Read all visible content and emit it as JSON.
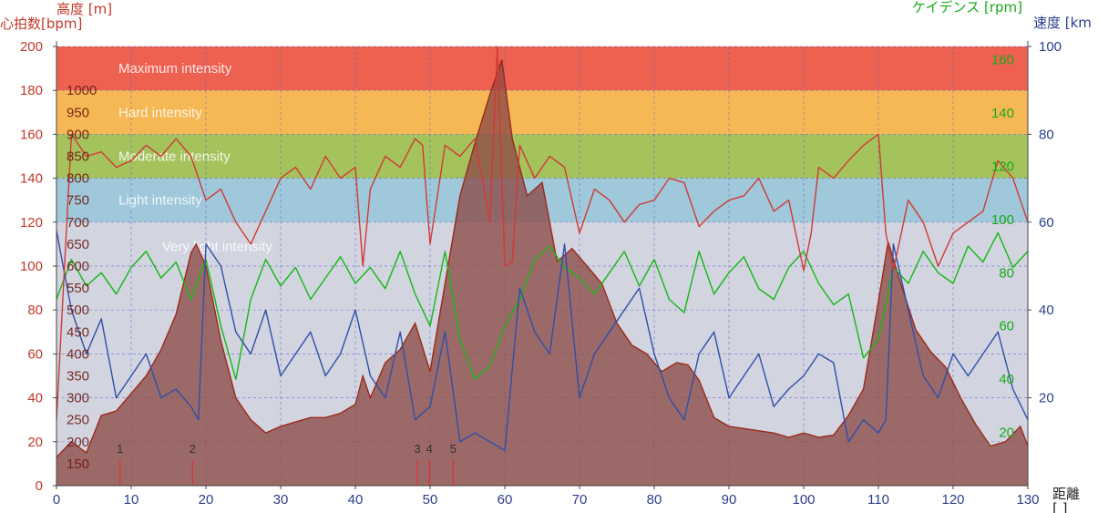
{
  "colors": {
    "hr": "#d03a35",
    "altitude_fill": "#8d4a48",
    "altitude_line": "#9a2a1a",
    "cadence": "#14b814",
    "speed": "#2f4fa8",
    "grid": "#5560c8",
    "axis_left": "#c0392b",
    "axis_right_speed": "#2c3e8c",
    "axis_right_cadence": "#1aaa1a",
    "zone_max": "#ee6150",
    "zone_hard": "#f6b855",
    "zone_moderate": "#a5c35c",
    "zone_light": "#9fc8da",
    "zone_very_light": "#d2d4e0"
  },
  "labels": {
    "altitude_title": "高度 [m]",
    "hr_title": "心拍数[bpm]",
    "cadence_title": "ケイデンス [rpm]",
    "speed_title": "速度 [km",
    "distance_title": "距離",
    "distance_unit": "[ ]"
  },
  "chart_data": {
    "type": "line",
    "x_axis": {
      "label": "距離",
      "ticks": [
        0,
        10,
        20,
        30,
        40,
        50,
        60,
        70,
        80,
        90,
        100,
        110,
        120,
        130
      ],
      "range": [
        0,
        130
      ]
    },
    "y_axis_hr": {
      "label": "心拍数[bpm]",
      "ticks": [
        0,
        20,
        40,
        60,
        80,
        100,
        120,
        140,
        160,
        180,
        200
      ],
      "range": [
        0,
        200
      ]
    },
    "y_axis_altitude": {
      "label": "高度 [m]",
      "ticks": [
        150,
        200,
        250,
        300,
        350,
        400,
        450,
        500,
        550,
        600,
        650,
        700,
        750,
        800,
        850,
        900,
        950,
        1000
      ],
      "range": [
        100,
        1100
      ]
    },
    "y_axis_speed": {
      "label": "速度 [km",
      "ticks": [
        20,
        40,
        60,
        80,
        100
      ],
      "range": [
        0,
        100
      ]
    },
    "y_axis_cadence": {
      "label": "ケイデンス [rpm]",
      "ticks": [
        20,
        40,
        60,
        80,
        100,
        120,
        140,
        160
      ],
      "range": [
        0,
        165
      ]
    },
    "zones": [
      {
        "name": "Maximum intensity",
        "from": 180,
        "to": 200
      },
      {
        "name": "Hard intensity",
        "from": 160,
        "to": 180
      },
      {
        "name": "Moderate intensity",
        "from": 140,
        "to": 160
      },
      {
        "name": "Light intensity",
        "from": 120,
        "to": 140
      },
      {
        "name": "Very light intensity",
        "from": 98,
        "to": 120
      }
    ],
    "markers": [
      {
        "label": "1",
        "x": 8.5
      },
      {
        "label": "2",
        "x": 18.2
      },
      {
        "label": "3",
        "x": 48.3
      },
      {
        "label": "4",
        "x": 49.9
      },
      {
        "label": "5",
        "x": 53.1
      }
    ],
    "series": [
      {
        "name": "高度",
        "axis": "altitude",
        "x": [
          0,
          2,
          4,
          6,
          8,
          10,
          12,
          14,
          16,
          18,
          18.7,
          20,
          22,
          24,
          26,
          28,
          30,
          32,
          34,
          36,
          38,
          40,
          41,
          42,
          44,
          46,
          48,
          50,
          52,
          54,
          56,
          58,
          59.6,
          61,
          63,
          65,
          67,
          69,
          71,
          73,
          75,
          77,
          79,
          81,
          83,
          84.5,
          86,
          88,
          90,
          92,
          94,
          96,
          98,
          100,
          102,
          104,
          106,
          108,
          110,
          111.3,
          113,
          115,
          117,
          119,
          121,
          123,
          125,
          127,
          129,
          130
        ],
        "y": [
          165,
          200,
          175,
          260,
          270,
          310,
          350,
          410,
          490,
          630,
          650,
          600,
          430,
          300,
          250,
          220,
          235,
          245,
          255,
          255,
          265,
          285,
          350,
          300,
          380,
          410,
          470,
          360,
          560,
          760,
          880,
          990,
          1070,
          890,
          760,
          790,
          610,
          640,
          600,
          560,
          470,
          420,
          400,
          360,
          380,
          375,
          340,
          255,
          235,
          230,
          225,
          220,
          210,
          220,
          210,
          215,
          260,
          320,
          520,
          655,
          560,
          455,
          405,
          370,
          300,
          240,
          190,
          200,
          235,
          190
        ]
      },
      {
        "name": "心拍数",
        "axis": "hr",
        "x": [
          0,
          2,
          4,
          6,
          8,
          10,
          12,
          14,
          16,
          18,
          20,
          22,
          24,
          26,
          28,
          30,
          32,
          34,
          36,
          38,
          40,
          41,
          42,
          44,
          46,
          48,
          49,
          50,
          52,
          54,
          56,
          58,
          59,
          60,
          61,
          62,
          64,
          66,
          68,
          70,
          72,
          74,
          76,
          78,
          80,
          82,
          84,
          86,
          88,
          90,
          92,
          94,
          96,
          98,
          100,
          101,
          102,
          104,
          106,
          108,
          110,
          111,
          112,
          114,
          116,
          118,
          120,
          122,
          124,
          126,
          128,
          130
        ],
        "y": [
          30,
          160,
          150,
          152,
          145,
          148,
          155,
          150,
          158,
          150,
          130,
          135,
          120,
          110,
          125,
          140,
          145,
          135,
          150,
          140,
          145,
          100,
          135,
          150,
          145,
          158,
          155,
          110,
          155,
          150,
          158,
          120,
          200,
          100,
          102,
          155,
          140,
          150,
          145,
          115,
          135,
          130,
          120,
          128,
          130,
          140,
          138,
          118,
          125,
          130,
          132,
          140,
          125,
          130,
          98,
          115,
          145,
          140,
          148,
          155,
          160,
          115,
          98,
          130,
          120,
          100,
          115,
          120,
          125,
          148,
          140,
          120
        ]
      },
      {
        "name": "ケイデンス",
        "axis": "cadence",
        "x": [
          0,
          2,
          4,
          6,
          8,
          10,
          12,
          14,
          16,
          18,
          20,
          22,
          24,
          26,
          28,
          30,
          32,
          34,
          36,
          38,
          40,
          42,
          44,
          46,
          48,
          50,
          52,
          54,
          56,
          58,
          60,
          62,
          64,
          66,
          68,
          70,
          72,
          74,
          76,
          78,
          80,
          82,
          84,
          86,
          88,
          90,
          92,
          94,
          96,
          98,
          100,
          102,
          104,
          106,
          108,
          110,
          112,
          114,
          116,
          118,
          120,
          122,
          124,
          126,
          128,
          130
        ],
        "y": [
          70,
          85,
          75,
          80,
          72,
          82,
          88,
          78,
          84,
          70,
          85,
          60,
          40,
          70,
          85,
          75,
          82,
          70,
          78,
          86,
          76,
          82,
          74,
          88,
          72,
          60,
          88,
          55,
          40,
          45,
          60,
          70,
          85,
          90,
          82,
          78,
          72,
          80,
          88,
          75,
          85,
          70,
          65,
          88,
          72,
          80,
          86,
          74,
          70,
          82,
          88,
          76,
          68,
          72,
          48,
          55,
          82,
          76,
          88,
          80,
          76,
          90,
          84,
          95,
          82,
          88
        ]
      },
      {
        "name": "速度",
        "axis": "speed",
        "x": [
          0,
          2,
          4,
          6,
          8,
          10,
          12,
          14,
          16,
          18,
          19,
          20,
          22,
          24,
          26,
          28,
          30,
          32,
          34,
          36,
          38,
          40,
          42,
          44,
          46,
          48,
          50,
          52,
          54,
          56,
          58,
          60,
          62,
          64,
          66,
          68,
          70,
          72,
          74,
          76,
          78,
          80,
          82,
          84,
          86,
          88,
          90,
          92,
          94,
          96,
          98,
          100,
          102,
          104,
          106,
          108,
          110,
          111,
          112,
          114,
          116,
          118,
          120,
          122,
          124,
          126,
          128,
          130
        ],
        "y": [
          58,
          40,
          30,
          38,
          20,
          25,
          30,
          20,
          22,
          18,
          15,
          55,
          50,
          35,
          30,
          40,
          25,
          30,
          35,
          25,
          30,
          40,
          25,
          20,
          35,
          15,
          18,
          35,
          10,
          12,
          10,
          8,
          45,
          35,
          30,
          55,
          20,
          30,
          35,
          40,
          45,
          30,
          20,
          15,
          30,
          35,
          20,
          25,
          30,
          18,
          22,
          25,
          30,
          28,
          10,
          15,
          12,
          15,
          55,
          40,
          25,
          20,
          30,
          25,
          30,
          35,
          22,
          15
        ]
      }
    ]
  }
}
